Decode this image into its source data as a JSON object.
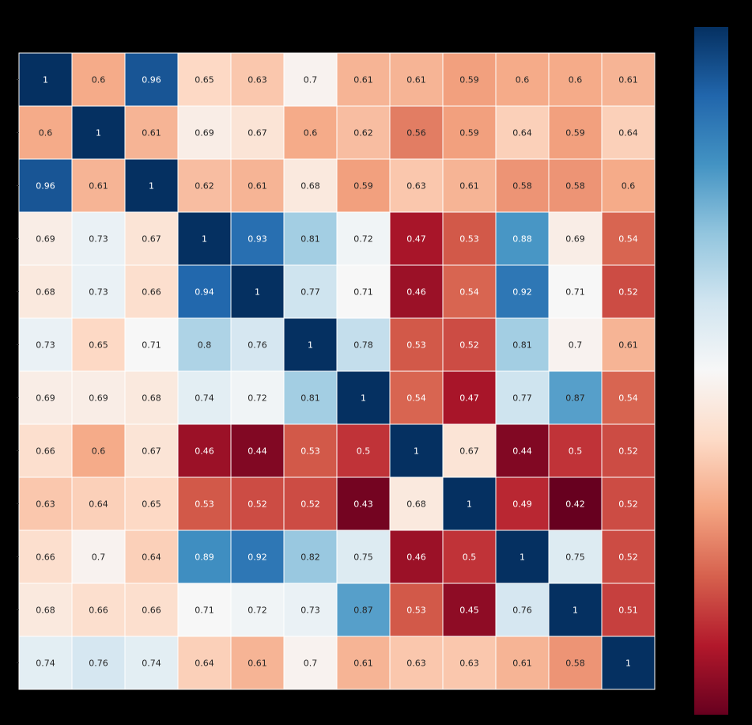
{
  "chart_data": {
    "type": "heatmap",
    "title": "",
    "xlabel": "",
    "ylabel": "",
    "rows": 12,
    "cols": 12,
    "values": [
      [
        1,
        0.6,
        0.96,
        0.65,
        0.63,
        0.7,
        0.61,
        0.61,
        0.59,
        0.6,
        0.6,
        0.61
      ],
      [
        0.6,
        1,
        0.61,
        0.69,
        0.67,
        0.6,
        0.62,
        0.56,
        0.59,
        0.64,
        0.59,
        0.64
      ],
      [
        0.96,
        0.61,
        1,
        0.62,
        0.61,
        0.68,
        0.59,
        0.63,
        0.61,
        0.58,
        0.58,
        0.6
      ],
      [
        0.69,
        0.73,
        0.67,
        1,
        0.93,
        0.81,
        0.72,
        0.47,
        0.53,
        0.88,
        0.69,
        0.54
      ],
      [
        0.68,
        0.73,
        0.66,
        0.94,
        1,
        0.77,
        0.71,
        0.46,
        0.54,
        0.92,
        0.71,
        0.52
      ],
      [
        0.73,
        0.65,
        0.71,
        0.8,
        0.76,
        1,
        0.78,
        0.53,
        0.52,
        0.81,
        0.7,
        0.61
      ],
      [
        0.69,
        0.69,
        0.68,
        0.74,
        0.72,
        0.81,
        1,
        0.54,
        0.47,
        0.77,
        0.87,
        0.54
      ],
      [
        0.66,
        0.6,
        0.67,
        0.46,
        0.44,
        0.53,
        0.5,
        1,
        0.67,
        0.44,
        0.5,
        0.52
      ],
      [
        0.63,
        0.64,
        0.65,
        0.53,
        0.52,
        0.52,
        0.43,
        0.68,
        1,
        0.49,
        0.42,
        0.52
      ],
      [
        0.66,
        0.7,
        0.64,
        0.89,
        0.92,
        0.82,
        0.75,
        0.46,
        0.5,
        1,
        0.75,
        0.52
      ],
      [
        0.68,
        0.66,
        0.66,
        0.71,
        0.72,
        0.73,
        0.87,
        0.53,
        0.45,
        0.76,
        1,
        0.51
      ],
      [
        0.74,
        0.76,
        0.74,
        0.64,
        0.61,
        0.7,
        0.61,
        0.63,
        0.63,
        0.61,
        0.58,
        1
      ]
    ],
    "colormap": "RdBu",
    "vmin": 0.42,
    "vmax": 1.0,
    "colorbar": {
      "position": "right",
      "colors": [
        "#67001f",
        "#b2182b",
        "#d6604d",
        "#f4a582",
        "#fddbc7",
        "#f7f7f7",
        "#d1e5f0",
        "#92c5de",
        "#4393c3",
        "#2166ac",
        "#053061"
      ]
    },
    "background_color": "#000000",
    "gridline_color": "#ffffff",
    "annotations": true
  }
}
